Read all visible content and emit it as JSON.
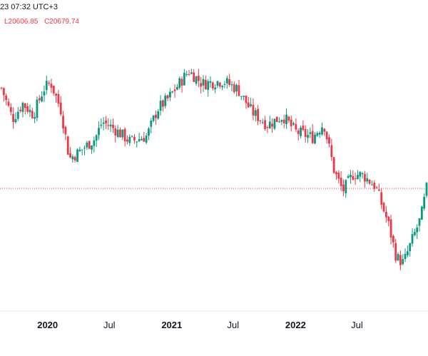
{
  "header": {
    "timestamp": "23 07:32 UTC+3",
    "low": "L20606.85",
    "close": "C20679.74"
  },
  "chart_data": {
    "type": "candlestick",
    "interval": "weekly",
    "x_start": "2019-08-18",
    "x_end": "2023-01-22",
    "ylim": [
      12000,
      32000
    ],
    "reference_line": 20679.74,
    "x_ticks": [
      {
        "date": "2020-01-01",
        "label": "2020",
        "major": true
      },
      {
        "date": "2020-07-01",
        "label": "Jul",
        "major": false
      },
      {
        "date": "2021-01-01",
        "label": "2021",
        "major": true
      },
      {
        "date": "2021-07-01",
        "label": "Jul",
        "major": false
      },
      {
        "date": "2022-01-01",
        "label": "2022",
        "major": true
      },
      {
        "date": "2022-07-01",
        "label": "Jul",
        "major": false
      }
    ],
    "colors": {
      "up": "#089981",
      "down": "#F23645",
      "reference": "#F23645",
      "axis": "#E0E3EB"
    },
    "waypoints": [
      {
        "date": "2019-08-18",
        "close": 27800
      },
      {
        "date": "2019-09-20",
        "close": 25600
      },
      {
        "date": "2019-10-20",
        "close": 26700
      },
      {
        "date": "2019-11-20",
        "close": 25900
      },
      {
        "date": "2019-12-20",
        "close": 27700
      },
      {
        "date": "2020-01-10",
        "close": 28200
      },
      {
        "date": "2020-02-10",
        "close": 26200
      },
      {
        "date": "2020-03-05",
        "close": 22800
      },
      {
        "date": "2020-03-25",
        "close": 23100
      },
      {
        "date": "2020-05-20",
        "close": 24200
      },
      {
        "date": "2020-06-10",
        "close": 25400
      },
      {
        "date": "2020-07-10",
        "close": 25000
      },
      {
        "date": "2020-09-01",
        "close": 24000
      },
      {
        "date": "2020-10-20",
        "close": 24400
      },
      {
        "date": "2020-11-20",
        "close": 26300
      },
      {
        "date": "2020-12-20",
        "close": 27000
      },
      {
        "date": "2021-01-20",
        "close": 28000
      },
      {
        "date": "2021-02-20",
        "close": 29000
      },
      {
        "date": "2021-04-01",
        "close": 28100
      },
      {
        "date": "2021-06-01",
        "close": 28300
      },
      {
        "date": "2021-07-15",
        "close": 27700
      },
      {
        "date": "2021-08-25",
        "close": 26100
      },
      {
        "date": "2021-10-10",
        "close": 25200
      },
      {
        "date": "2021-11-25",
        "close": 25800
      },
      {
        "date": "2022-01-01",
        "close": 24700
      },
      {
        "date": "2022-02-20",
        "close": 24300
      },
      {
        "date": "2022-03-25",
        "close": 25300
      },
      {
        "date": "2022-04-25",
        "close": 21900
      },
      {
        "date": "2022-05-20",
        "close": 20500
      },
      {
        "date": "2022-06-20",
        "close": 21700
      },
      {
        "date": "2022-07-20",
        "close": 21600
      },
      {
        "date": "2022-08-25",
        "close": 20800
      },
      {
        "date": "2022-10-01",
        "close": 18200
      },
      {
        "date": "2022-10-25",
        "close": 15800
      },
      {
        "date": "2022-11-15",
        "close": 15400
      },
      {
        "date": "2022-12-10",
        "close": 17000
      },
      {
        "date": "2023-01-05",
        "close": 18600
      },
      {
        "date": "2023-01-22",
        "close": 20679.74
      }
    ]
  }
}
